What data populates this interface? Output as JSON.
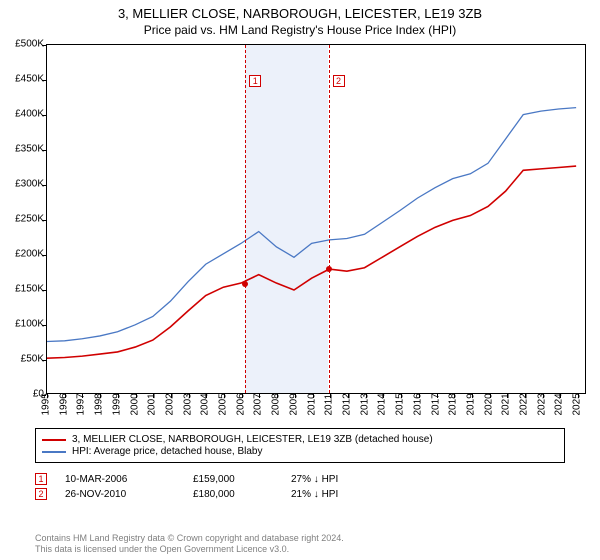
{
  "title": "3, MELLIER CLOSE, NARBOROUGH, LEICESTER, LE19 3ZB",
  "subtitle": "Price paid vs. HM Land Registry's House Price Index (HPI)",
  "chart": {
    "type": "line",
    "background_color": "#ffffff",
    "plot_border_color": "#000000",
    "ylim": [
      0,
      500000
    ],
    "ytick_step": 50000,
    "ytick_labels": [
      "£0",
      "£50K",
      "£100K",
      "£150K",
      "£200K",
      "£250K",
      "£300K",
      "£350K",
      "£400K",
      "£450K",
      "£500K"
    ],
    "x_years": [
      1995,
      1996,
      1997,
      1998,
      1999,
      2000,
      2001,
      2002,
      2003,
      2004,
      2005,
      2006,
      2007,
      2008,
      2009,
      2010,
      2011,
      2012,
      2013,
      2014,
      2015,
      2016,
      2017,
      2018,
      2019,
      2020,
      2021,
      2022,
      2023,
      2024,
      2025
    ],
    "xlim": [
      1995,
      2025.5
    ],
    "shaded_region": {
      "x_start": 2006.2,
      "x_end": 2010.9,
      "fill": "#c8d7f0",
      "opacity": 0.35
    },
    "series": [
      {
        "name": "price_paid",
        "label": "3, MELLIER CLOSE, NARBOROUGH, LEICESTER, LE19 3ZB (detached house)",
        "color": "#d00000",
        "line_width": 1.6,
        "points": [
          [
            1995,
            50000
          ],
          [
            1996,
            51000
          ],
          [
            1997,
            53000
          ],
          [
            1998,
            56000
          ],
          [
            1999,
            59000
          ],
          [
            2000,
            66000
          ],
          [
            2001,
            76000
          ],
          [
            2002,
            95000
          ],
          [
            2003,
            118000
          ],
          [
            2004,
            140000
          ],
          [
            2005,
            152000
          ],
          [
            2006,
            158000
          ],
          [
            2007,
            170000
          ],
          [
            2008,
            158000
          ],
          [
            2009,
            148000
          ],
          [
            2010,
            165000
          ],
          [
            2011,
            178000
          ],
          [
            2012,
            175000
          ],
          [
            2013,
            180000
          ],
          [
            2014,
            195000
          ],
          [
            2015,
            210000
          ],
          [
            2016,
            225000
          ],
          [
            2017,
            238000
          ],
          [
            2018,
            248000
          ],
          [
            2019,
            255000
          ],
          [
            2020,
            268000
          ],
          [
            2021,
            290000
          ],
          [
            2022,
            320000
          ],
          [
            2023,
            322000
          ],
          [
            2024,
            324000
          ],
          [
            2025,
            326000
          ]
        ]
      },
      {
        "name": "hpi",
        "label": "HPI: Average price, detached house, Blaby",
        "color": "#4a78c4",
        "line_width": 1.3,
        "points": [
          [
            1995,
            74000
          ],
          [
            1996,
            75000
          ],
          [
            1997,
            78000
          ],
          [
            1998,
            82000
          ],
          [
            1999,
            88000
          ],
          [
            2000,
            98000
          ],
          [
            2001,
            110000
          ],
          [
            2002,
            132000
          ],
          [
            2003,
            160000
          ],
          [
            2004,
            185000
          ],
          [
            2005,
            200000
          ],
          [
            2006,
            215000
          ],
          [
            2007,
            232000
          ],
          [
            2008,
            210000
          ],
          [
            2009,
            195000
          ],
          [
            2010,
            215000
          ],
          [
            2011,
            220000
          ],
          [
            2012,
            222000
          ],
          [
            2013,
            228000
          ],
          [
            2014,
            245000
          ],
          [
            2015,
            262000
          ],
          [
            2016,
            280000
          ],
          [
            2017,
            295000
          ],
          [
            2018,
            308000
          ],
          [
            2019,
            315000
          ],
          [
            2020,
            330000
          ],
          [
            2021,
            365000
          ],
          [
            2022,
            400000
          ],
          [
            2023,
            405000
          ],
          [
            2024,
            408000
          ],
          [
            2025,
            410000
          ]
        ]
      }
    ],
    "markers": [
      {
        "index": 1,
        "year": 2006.2,
        "price": 159000,
        "box_top_y": 30
      },
      {
        "index": 2,
        "year": 2010.9,
        "price": 180000,
        "box_top_y": 30
      }
    ],
    "marker_line_color": "#d00000",
    "tick_fontsize": 10
  },
  "legend": {
    "border_color": "#000000",
    "rows": [
      {
        "color": "#d00000",
        "text": "3, MELLIER CLOSE, NARBOROUGH, LEICESTER, LE19 3ZB (detached house)"
      },
      {
        "color": "#4a78c4",
        "text": "HPI: Average price, detached house, Blaby"
      }
    ]
  },
  "sales": [
    {
      "index": "1",
      "date": "10-MAR-2006",
      "price": "£159,000",
      "delta": "27% ↓ HPI"
    },
    {
      "index": "2",
      "date": "26-NOV-2010",
      "price": "£180,000",
      "delta": "21% ↓ HPI"
    }
  ],
  "footer_line1": "Contains HM Land Registry data © Crown copyright and database right 2024.",
  "footer_line2": "This data is licensed under the Open Government Licence v3.0."
}
